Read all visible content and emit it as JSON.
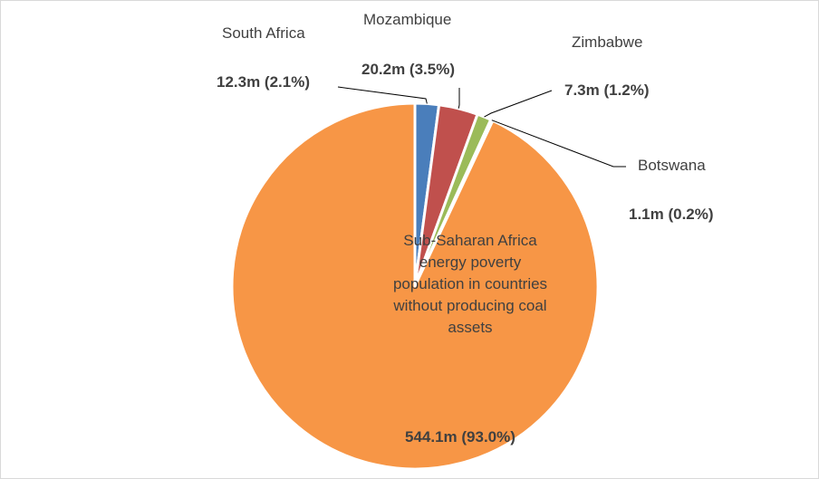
{
  "chart_data": {
    "type": "pie",
    "title": "",
    "slices": [
      {
        "name": "South Africa",
        "label": "South Africa",
        "value_label": "12.3m (2.1%)",
        "value": 12.3,
        "percent": 2.1,
        "color": "#4a7ebb"
      },
      {
        "name": "Mozambique",
        "label": "Mozambique",
        "value_label": "20.2m (3.5%)",
        "value": 20.2,
        "percent": 3.5,
        "color": "#c0504d"
      },
      {
        "name": "Zimbabwe",
        "label": "Zimbabwe",
        "value_label": "7.3m (1.2%)",
        "value": 7.3,
        "percent": 1.2,
        "color": "#9bbb59"
      },
      {
        "name": "Botswana",
        "label": "Botswana",
        "value_label": "1.1m (0.2%)",
        "value": 1.1,
        "percent": 0.2,
        "color": "#8064a2"
      },
      {
        "name": "Sub-Saharan Africa energy poverty population in countries without producing coal assets",
        "label": "Sub-Saharan Africa energy poverty population in countries without producing coal assets",
        "value_label": "544.1m (93.0%)",
        "value": 544.1,
        "percent": 93.0,
        "color": "#f79646"
      }
    ]
  }
}
